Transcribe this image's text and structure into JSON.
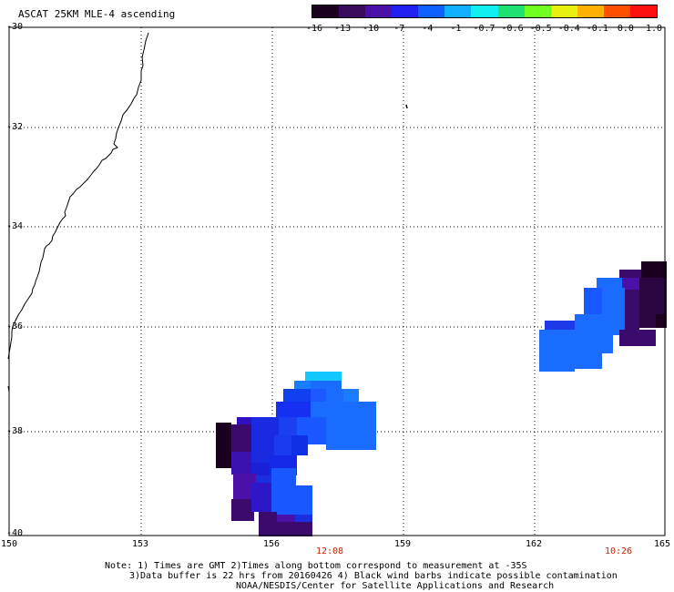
{
  "title": "ASCAT 25KM MLE-4 ascending",
  "colorbar": {
    "labels": [
      "-16",
      "-13",
      "-10",
      "-7",
      "-4",
      "-1",
      "-0.7",
      "-0.6",
      "-0.5",
      "-0.4",
      "-0.1",
      "0.0",
      "1.0"
    ],
    "colors": [
      "#1a001e",
      "#3a0a5c",
      "#4a10a8",
      "#2020f0",
      "#1060ff",
      "#10b0ff",
      "#10f0f0",
      "#20e070",
      "#70ff20",
      "#e8f010",
      "#ffb000",
      "#ff5000",
      "#ff1010"
    ]
  },
  "axes": {
    "lat_labels": [
      "-30",
      "-32",
      "-34",
      "-36",
      "-38",
      "-40"
    ],
    "lon_labels": [
      "150",
      "153",
      "156",
      "159",
      "162",
      "165"
    ]
  },
  "time_labels": [
    "12:08",
    "10:26"
  ],
  "notes": {
    "line1": "Note: 1) Times are GMT 2)Times along bottom correspond to measurement at -35S",
    "line2": "3)Data buffer is 22 hrs from 20160426 4) Black wind barbs indicate possible contamination",
    "line3": "NOAA/NESDIS/Center for Satellite Applications and Research"
  }
}
